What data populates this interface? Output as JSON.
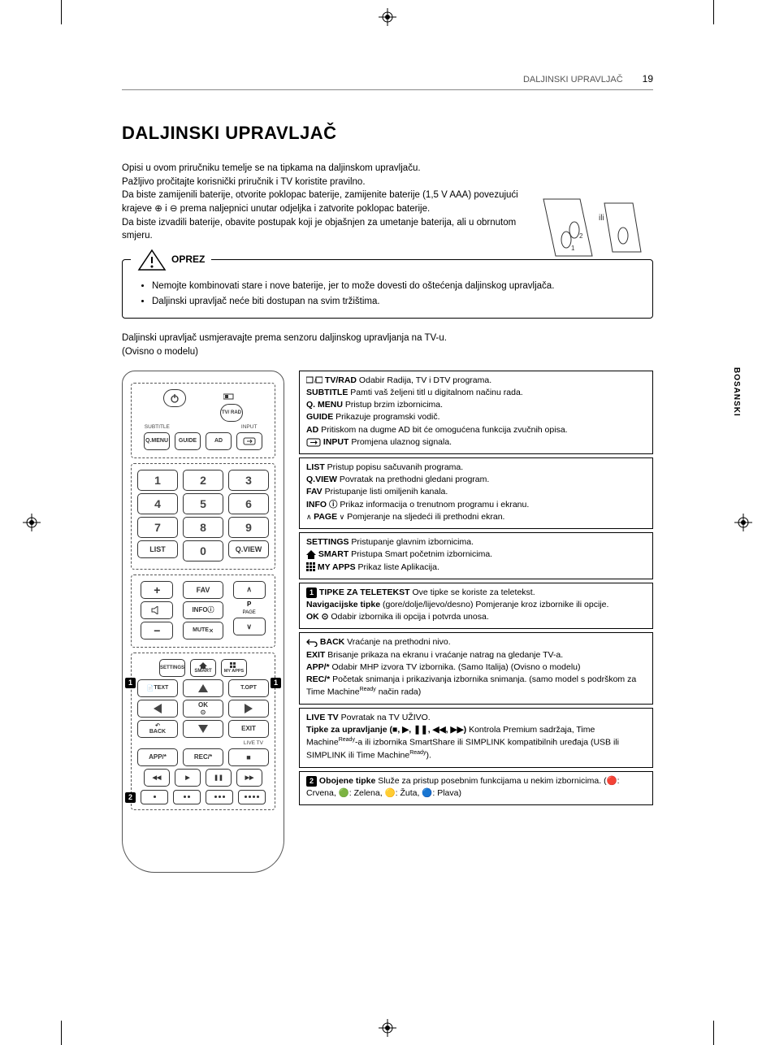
{
  "header": {
    "section": "DALJINSKI UPRAVLJAČ",
    "page_num": "19"
  },
  "title": "DALJINSKI UPRAVLJAČ",
  "intro_lines": [
    "Opisi u ovom priručniku temelje se na tipkama na daljinskom upravljaču.",
    "Pažljivo pročitajte korisnički priručnik i TV koristite pravilno.",
    "Da biste zamijenili baterije, otvorite poklopac baterije, zamijenite baterije (1,5 V AAA) povezujući krajeve ⊕ i ⊖ prema naljepnici unutar odjeljka i zatvorite poklopac baterije.",
    "Da biste izvadili baterije, obavite postupak koji je objašnjen za umetanje baterija, ali u obrnutom smjeru."
  ],
  "battery_label": "ili",
  "caution": {
    "label": "OPREZ",
    "items": [
      "Nemojte kombinovati stare i nove baterije, jer to može dovesti do oštećenja daljinskog upravljača.",
      "Daljinski upravljač neće biti dostupan na svim tržištima."
    ]
  },
  "after_caution": [
    "Daljinski upravljač usmjeravajte prema senzoru daljinskog upravljanja na TV-u.",
    "(Ovisno o modelu)"
  ],
  "lang_tab": "BOSANSKI",
  "remote": {
    "top_labels": {
      "subtitle": "SUBTITLE",
      "input": "INPUT",
      "tvrad": "TV/\nRAD"
    },
    "row_qmenu": [
      "Q.MENU",
      "GUIDE",
      "AD"
    ],
    "nums": [
      "1",
      "2",
      "3",
      "4",
      "5",
      "6",
      "7",
      "8",
      "9"
    ],
    "list": "LIST",
    "zero": "0",
    "qview": "Q.VIEW",
    "fav": "FAV",
    "info": "INFO",
    "mute": "MUTE",
    "p_label": "P",
    "page_label": "PAGE",
    "settings": "SETTINGS",
    "smart": "SMART",
    "myapps": "MY APPS",
    "text": "TEXT",
    "topt": "T.OPT",
    "ok": "OK",
    "back": "BACK",
    "exit": "EXIT",
    "livetv": "LIVE TV",
    "app": "APP/*",
    "rec": "REC/*"
  },
  "desc_boxes": [
    {
      "lines": [
        {
          "icon": "tvrad",
          "b": "TV/RAD",
          "t": " Odabir Radija, TV i DTV programa."
        },
        {
          "b": "SUBTITLE",
          "t": " Pamti vaš željeni titl u digitalnom načinu rada."
        },
        {
          "b": "Q. MENU",
          "t": " Pristup brzim izbornicima."
        },
        {
          "b": "GUIDE",
          "t": " Prikazuje programski vodič."
        },
        {
          "b": "AD",
          "t": " Pritiskom na dugme AD bit će omogućena funkcija zvučnih opisa."
        },
        {
          "icon": "input",
          "b": "INPUT",
          "t": " Promjena ulaznog signala."
        }
      ]
    },
    {
      "lines": [
        {
          "b": "LIST",
          "t": " Pristup popisu sačuvanih programa."
        },
        {
          "b": "Q.VIEW",
          "t": " Povratak na prethodni gledani program."
        },
        {
          "b": "FAV",
          "t": " Pristupanje listi omiljenih kanala."
        },
        {
          "b": "INFO ⓘ",
          "t": " Prikaz informacija o trenutnom programu i ekranu."
        },
        {
          "icon": "page",
          "b": "PAGE",
          "t": " Pomjeranje na sljedeći ili prethodni ekran."
        }
      ]
    },
    {
      "lines": [
        {
          "b": "SETTINGS",
          "t": " Pristupanje glavnim izbornicima."
        },
        {
          "icon": "home",
          "b": "SMART",
          "t": " Pristupa Smart početnim izbornicima."
        },
        {
          "icon": "grid",
          "b": "MY APPS",
          "t": " Prikaz liste Aplikacija."
        }
      ]
    },
    {
      "lines": [
        {
          "callout": "1",
          "b": "TIPKE ZA TELETEKST",
          "t": " Ove tipke se koriste za teletekst."
        },
        {
          "b": "Navigacijske tipke",
          "t": " (gore/dolje/lijevo/desno) Pomjeranje kroz izbornike ili opcije."
        },
        {
          "b": "OK ⊙",
          "t": " Odabir izbornika ili opcija i potvrda unosa."
        }
      ]
    },
    {
      "lines": [
        {
          "icon": "back",
          "b": "BACK",
          "t": " Vraćanje na prethodni nivo."
        },
        {
          "b": "EXIT",
          "t": "  Brisanje prikaza na ekranu i vraćanje natrag na gledanje TV-a."
        },
        {
          "b": "APP/*",
          "t": " Odabir MHP izvora TV izbornika. (Samo Italija) (Ovisno o modelu)"
        },
        {
          "html": "<b>REC/*</b> Početak snimanja i prikazivanja izbornika snimanja. (samo model s podrškom za Time Machine<span class='sup'>Ready</span> način rada)"
        }
      ]
    },
    {
      "lines": [
        {
          "b": "LIVE TV",
          "t": " Povratak na TV UŽIVO."
        },
        {
          "html": "<b>Tipke za upravljanje (■, ▶, ❚❚, ◀◀, ▶▶)</b> Kontrola Premium sadržaja, Time Machine<span class='sup'>Ready</span>-a ili izbornika SmartShare ili SIMPLINK kompatibilnih uređaja (USB ili SIMPLINK ili Time Machine<span class='sup'>Ready</span>)."
        }
      ]
    },
    {
      "lines": [
        {
          "callout": "2",
          "html": "<b>Obojene tipke</b> Služe za pristup posebnim funkcijama u nekim izbornicima. (🔴: Crvena, 🟢: Zelena, 🟡: Žuta, 🔵: Plava)"
        }
      ]
    }
  ]
}
